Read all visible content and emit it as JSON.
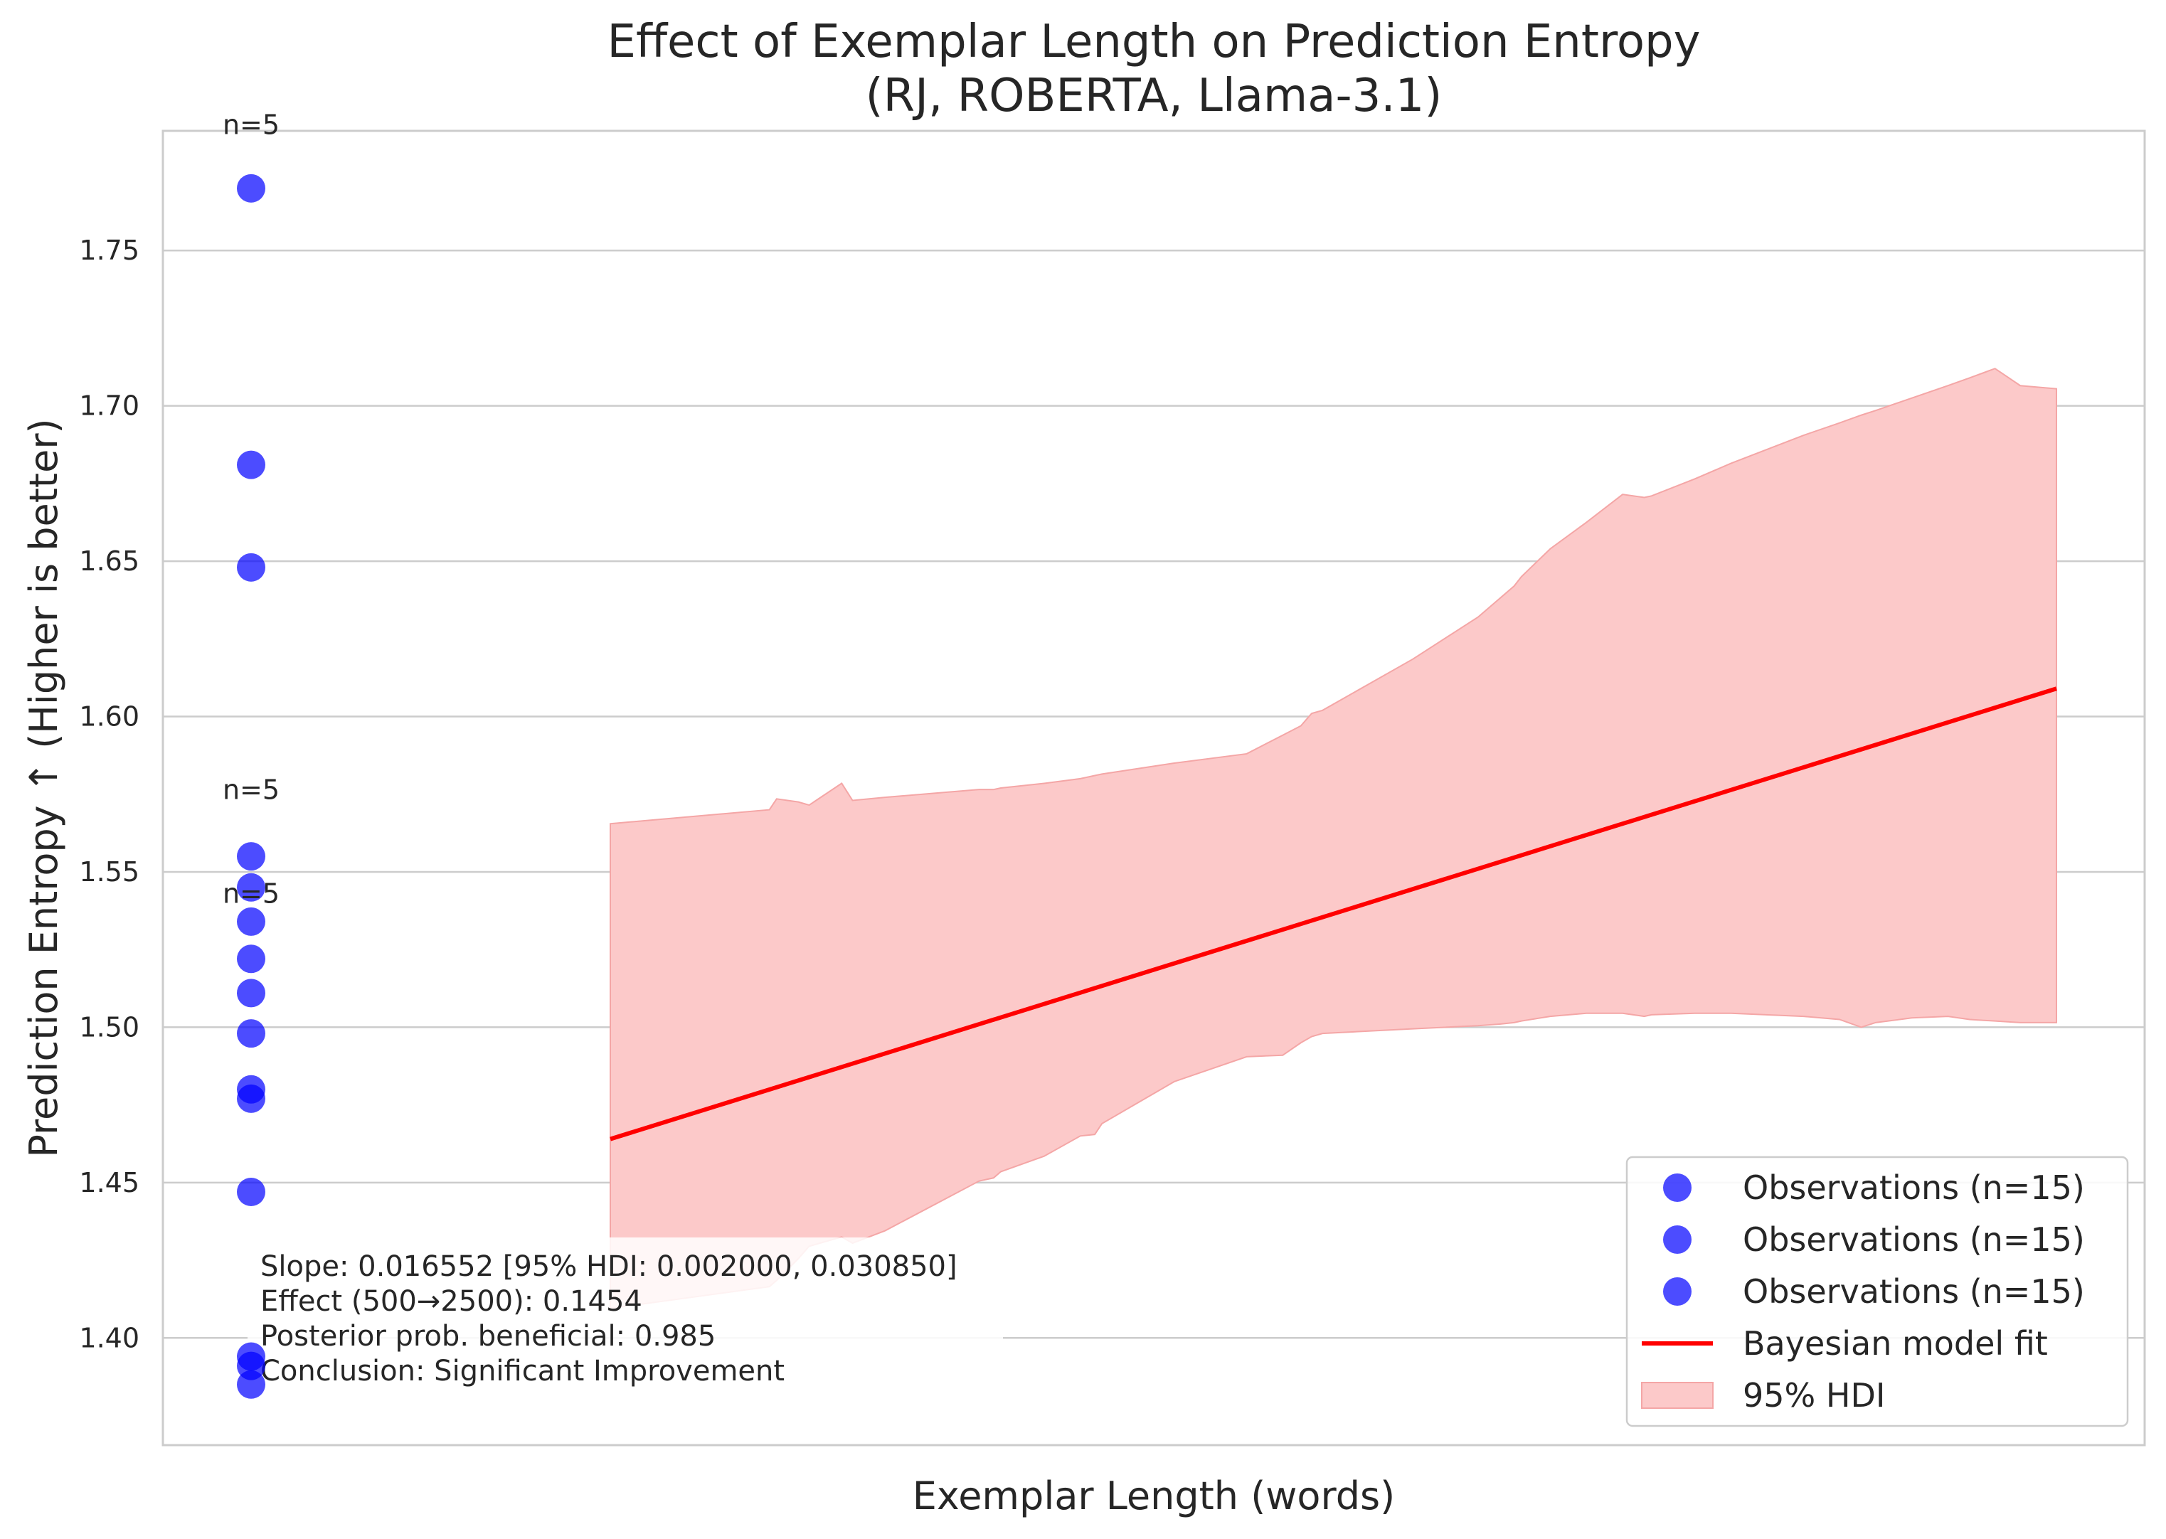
{
  "chart_data": {
    "type": "scatter",
    "title": [
      "Effect of Exemplar Length on Prediction Entropy",
      "(RJ, ROBERTA, Llama-3.1)"
    ],
    "xlabel": "Exemplar Length (words)",
    "ylabel": "Prediction Entropy ↑ (Higher is better)",
    "ylim": [
      1.3655,
      1.7885
    ],
    "yticks": [
      "1.40",
      "1.45",
      "1.50",
      "1.55",
      "1.60",
      "1.65",
      "1.70",
      "1.75"
    ],
    "grid": true,
    "legend_position": "lower right",
    "colors": {
      "points": "#0000ff",
      "fit_line": "#ff0000",
      "hdi_fill": "#fcc9c9",
      "hdi_edge": "#f4a6a6",
      "grid": "#cccccc"
    },
    "series": [
      {
        "kind": "points",
        "values": [
          1.77,
          1.681,
          1.648,
          1.555,
          1.545,
          1.534,
          1.522,
          1.511,
          1.498,
          1.48,
          1.477,
          1.447,
          1.394,
          1.391,
          1.385
        ]
      }
    ],
    "fit_line": {
      "x": [
        500,
        2500
      ],
      "y": [
        1.464,
        1.609
      ]
    },
    "hdi_band": {
      "x": [
        500,
        720,
        730,
        760,
        775,
        820,
        835,
        880,
        1010,
        1030,
        1040,
        1100,
        1150,
        1170,
        1180,
        1280,
        1380,
        1430,
        1455,
        1470,
        1485,
        1610,
        1700,
        1730,
        1750,
        1760,
        1800,
        1850,
        1900,
        1930,
        1940,
        2000,
        2050,
        2150,
        2200,
        2230,
        2250,
        2300,
        2350,
        2380,
        2415,
        2450,
        2500
      ],
      "upper": [
        1.5655,
        1.57,
        1.5735,
        1.5725,
        1.5715,
        1.5785,
        1.573,
        1.574,
        1.5765,
        1.5765,
        1.577,
        1.5785,
        1.58,
        1.581,
        1.5815,
        1.585,
        1.588,
        1.594,
        1.597,
        1.601,
        1.602,
        1.6185,
        1.632,
        1.638,
        1.642,
        1.645,
        1.654,
        1.6625,
        1.6715,
        1.6705,
        1.671,
        1.6765,
        1.6815,
        1.6905,
        1.6945,
        1.697,
        1.6985,
        1.7025,
        1.7065,
        1.709,
        1.712,
        1.7065,
        1.7055
      ],
      "lower": [
        1.4095,
        1.4165,
        1.4185,
        1.4255,
        1.4295,
        1.4325,
        1.4305,
        1.4345,
        1.4505,
        1.4515,
        1.4535,
        1.4585,
        1.465,
        1.4655,
        1.469,
        1.4825,
        1.4905,
        1.491,
        1.495,
        1.497,
        1.498,
        1.4995,
        1.5005,
        1.501,
        1.5015,
        1.502,
        1.5035,
        1.5045,
        1.5045,
        1.5035,
        1.504,
        1.5045,
        1.5045,
        1.5035,
        1.5025,
        1.5,
        1.5015,
        1.503,
        1.5035,
        1.5025,
        1.502,
        1.5015,
        1.5015
      ]
    },
    "group_labels": [
      {
        "text": "n=5",
        "y": 1.7875
      },
      {
        "text": "n=5",
        "y": 1.5735
      },
      {
        "text": "n=5",
        "y": 1.54
      }
    ],
    "stats_box": [
      "Slope: 0.016552 [95% HDI: 0.002000, 0.030850]",
      "Effect (500→2500): 0.1454",
      "Posterior prob. beneficial: 0.985",
      "Conclusion: Significant Improvement"
    ],
    "legend": [
      {
        "kind": "marker",
        "label": "Observations (n=15)"
      },
      {
        "kind": "marker",
        "label": "Observations (n=15)"
      },
      {
        "kind": "marker",
        "label": "Observations (n=15)"
      },
      {
        "kind": "line",
        "label": "Bayesian model fit"
      },
      {
        "kind": "patch",
        "label": "95% HDI"
      }
    ]
  }
}
